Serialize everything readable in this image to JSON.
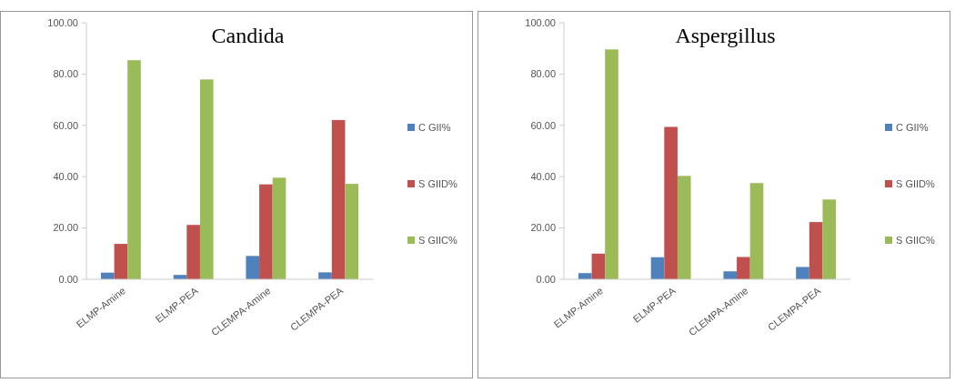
{
  "chart_data": [
    {
      "type": "bar",
      "title": "Candida",
      "categories": [
        "ELMP-Amine",
        "ELMP-PEA",
        "CLEMPA-Amine",
        "CLEMPA-PEA"
      ],
      "series": [
        {
          "name": "C GII%",
          "color": "#4f81bd",
          "values": [
            2.6,
            1.7,
            9.1,
            2.7
          ]
        },
        {
          "name": "S GIID%",
          "color": "#c0504d",
          "values": [
            13.8,
            21.2,
            37.0,
            62.1
          ]
        },
        {
          "name": "S GIIC%",
          "color": "#9bbb59",
          "values": [
            85.4,
            77.9,
            39.6,
            37.2
          ]
        }
      ],
      "ylim": [
        0,
        100
      ],
      "yticks": [
        {
          "value": 0,
          "label": "0.00"
        },
        {
          "value": 20,
          "label": "20.00"
        },
        {
          "value": 40,
          "label": "40.00"
        },
        {
          "value": 60,
          "label": "60.00"
        },
        {
          "value": 80,
          "label": "80.00"
        },
        {
          "value": 100,
          "label": "100.00"
        }
      ],
      "grid": false,
      "legend": "right"
    },
    {
      "type": "bar",
      "title": "Aspergillus",
      "categories": [
        "ELMP-Amine",
        "ELMP-PEA",
        "CLEMPA-Amine",
        "CLEMPA-PEA"
      ],
      "series": [
        {
          "name": "C GII%",
          "color": "#4f81bd",
          "values": [
            2.4,
            8.6,
            3.1,
            4.8
          ]
        },
        {
          "name": "S GIID%",
          "color": "#c0504d",
          "values": [
            10.0,
            59.4,
            8.7,
            22.3
          ]
        },
        {
          "name": "S GIIC%",
          "color": "#9bbb59",
          "values": [
            89.6,
            40.3,
            37.5,
            31.1
          ]
        }
      ],
      "ylim": [
        0,
        100
      ],
      "yticks": [
        {
          "value": 0,
          "label": "0.00"
        },
        {
          "value": 20,
          "label": "20.00"
        },
        {
          "value": 40,
          "label": "40.00"
        },
        {
          "value": 60,
          "label": "60.00"
        },
        {
          "value": 80,
          "label": "80.00"
        },
        {
          "value": 100,
          "label": "100.00"
        }
      ],
      "grid": false,
      "legend": "right"
    }
  ]
}
